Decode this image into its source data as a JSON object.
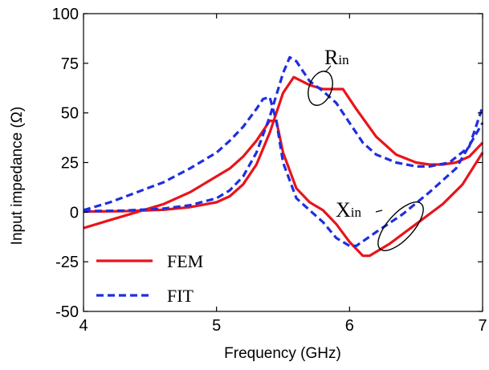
{
  "chart_data": {
    "type": "line",
    "xlabel": "Frequency (GHz)",
    "ylabel": "Input impedance (Ω)",
    "xlim": [
      4,
      7
    ],
    "ylim": [
      -50,
      100
    ],
    "xticks": [
      "4",
      "5",
      "6",
      "7"
    ],
    "yticks": [
      "-50",
      "-25",
      "0",
      "25",
      "50",
      "75",
      "100"
    ],
    "grid": false,
    "legend_position": "bottom-left",
    "series": [
      {
        "name": "FEM",
        "style": "solid",
        "color": "#e8141b",
        "curves": {
          "R": [
            [
              4.0,
              0.3
            ],
            [
              4.3,
              0.5
            ],
            [
              4.6,
              1.2
            ],
            [
              4.8,
              2.5
            ],
            [
              5.0,
              5
            ],
            [
              5.1,
              8
            ],
            [
              5.2,
              14
            ],
            [
              5.3,
              24
            ],
            [
              5.4,
              40
            ],
            [
              5.5,
              60
            ],
            [
              5.58,
              68
            ],
            [
              5.7,
              64
            ],
            [
              5.8,
              62
            ],
            [
              5.9,
              62
            ],
            [
              5.95,
              62
            ],
            [
              6.05,
              52
            ],
            [
              6.2,
              38
            ],
            [
              6.35,
              29
            ],
            [
              6.5,
              25
            ],
            [
              6.6,
              24
            ],
            [
              6.7,
              24
            ],
            [
              6.8,
              25
            ],
            [
              6.9,
              28
            ],
            [
              7.0,
              35
            ]
          ],
          "X": [
            [
              4.0,
              -8
            ],
            [
              4.2,
              -4
            ],
            [
              4.4,
              0
            ],
            [
              4.6,
              4
            ],
            [
              4.8,
              10
            ],
            [
              5.0,
              18
            ],
            [
              5.1,
              22
            ],
            [
              5.2,
              28
            ],
            [
              5.3,
              36
            ],
            [
              5.4,
              46
            ],
            [
              5.45,
              46
            ],
            [
              5.5,
              30
            ],
            [
              5.6,
              12
            ],
            [
              5.7,
              5
            ],
            [
              5.8,
              1
            ],
            [
              5.9,
              -6
            ],
            [
              6.0,
              -15
            ],
            [
              6.1,
              -22
            ],
            [
              6.15,
              -22
            ],
            [
              6.3,
              -16
            ],
            [
              6.5,
              -6
            ],
            [
              6.7,
              4
            ],
            [
              6.85,
              14
            ],
            [
              7.0,
              30
            ]
          ]
        }
      },
      {
        "name": "FIT",
        "style": "dashed",
        "color": "#1f2ee0",
        "curves": {
          "R": [
            [
              4.0,
              0.5
            ],
            [
              4.3,
              0.8
            ],
            [
              4.6,
              1.8
            ],
            [
              4.8,
              3.5
            ],
            [
              5.0,
              7
            ],
            [
              5.1,
              11
            ],
            [
              5.2,
              18
            ],
            [
              5.3,
              30
            ],
            [
              5.4,
              48
            ],
            [
              5.5,
              70
            ],
            [
              5.55,
              78
            ],
            [
              5.6,
              76
            ],
            [
              5.7,
              66
            ],
            [
              5.8,
              61
            ],
            [
              5.9,
              55
            ],
            [
              6.0,
              45
            ],
            [
              6.1,
              35
            ],
            [
              6.2,
              29
            ],
            [
              6.35,
              25
            ],
            [
              6.5,
              23
            ],
            [
              6.6,
              23
            ],
            [
              6.75,
              25
            ],
            [
              6.9,
              33
            ],
            [
              7.0,
              53
            ]
          ],
          "X": [
            [
              4.0,
              1
            ],
            [
              4.2,
              5
            ],
            [
              4.4,
              10
            ],
            [
              4.6,
              15
            ],
            [
              4.8,
              22
            ],
            [
              5.0,
              30
            ],
            [
              5.1,
              36
            ],
            [
              5.2,
              43
            ],
            [
              5.3,
              52
            ],
            [
              5.35,
              57
            ],
            [
              5.4,
              58
            ],
            [
              5.45,
              46
            ],
            [
              5.5,
              25
            ],
            [
              5.6,
              7
            ],
            [
              5.7,
              1
            ],
            [
              5.8,
              -5
            ],
            [
              5.9,
              -13
            ],
            [
              6.0,
              -17
            ],
            [
              6.05,
              -17
            ],
            [
              6.2,
              -10
            ],
            [
              6.4,
              -1
            ],
            [
              6.6,
              10
            ],
            [
              6.8,
              22
            ],
            [
              7.0,
              45
            ]
          ]
        }
      }
    ],
    "annotations": [
      {
        "name": "R",
        "sub": "in"
      },
      {
        "name": "X",
        "sub": "in"
      }
    ]
  }
}
